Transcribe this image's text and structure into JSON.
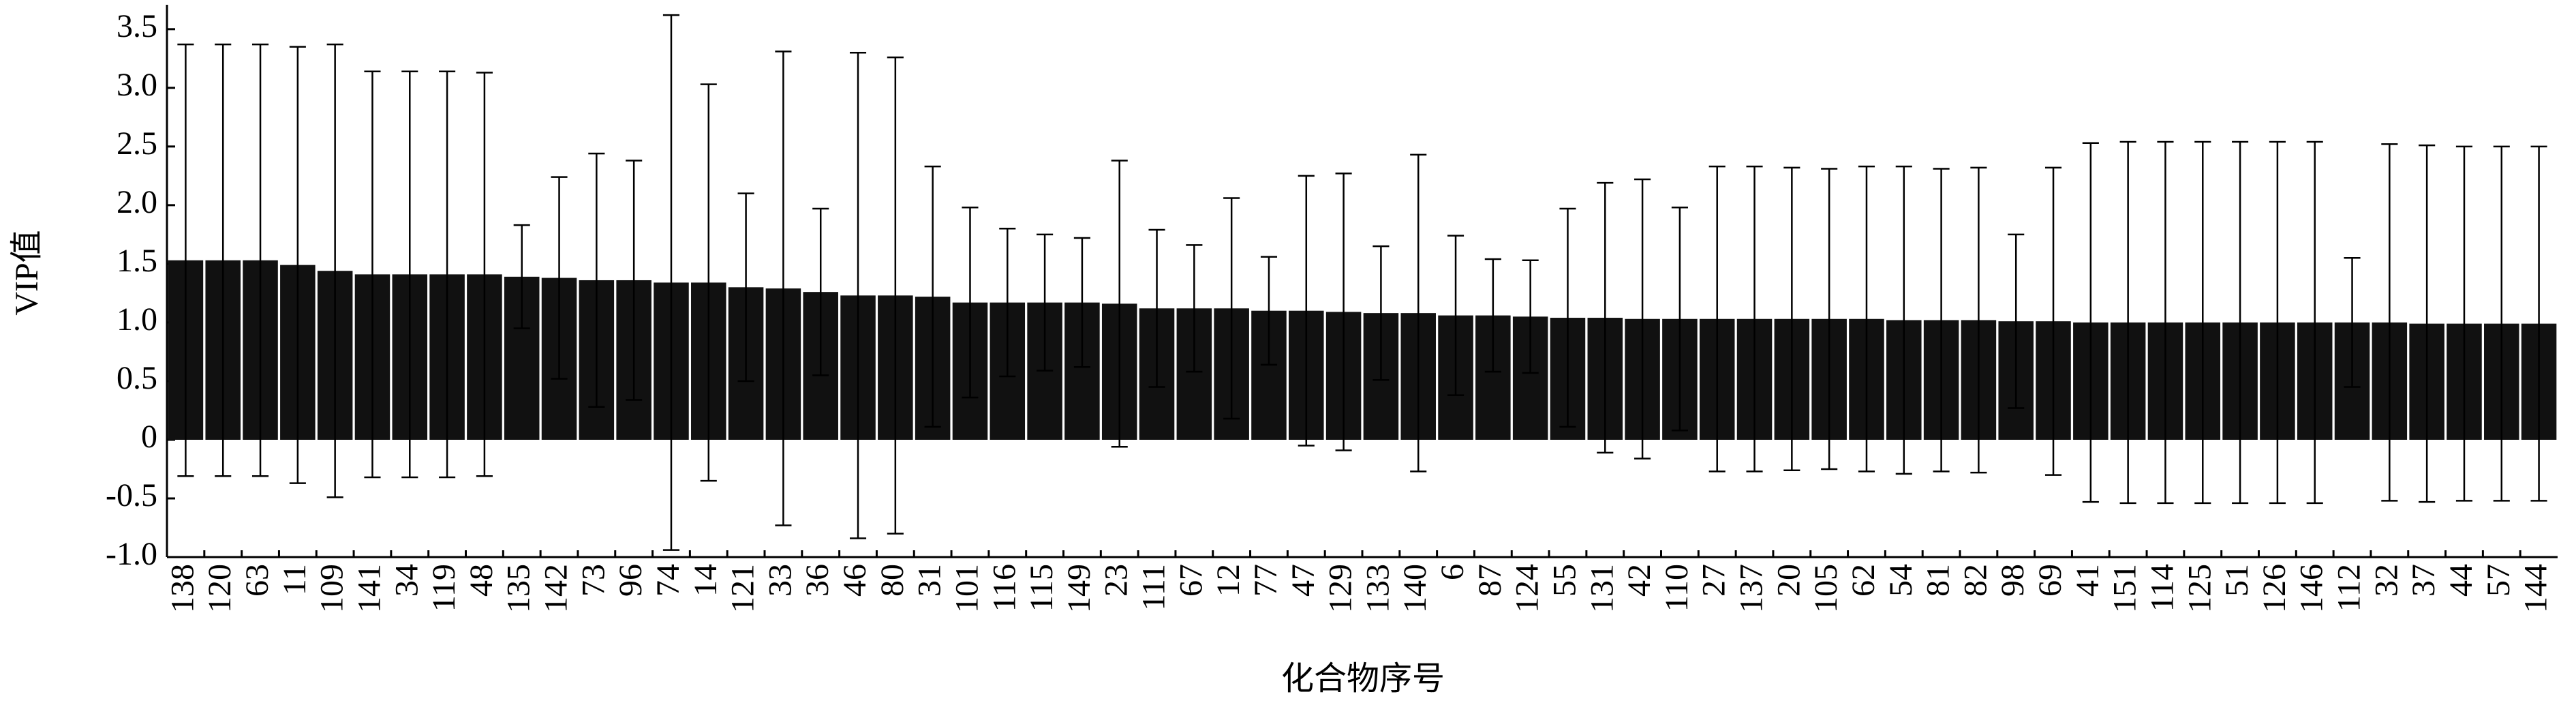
{
  "chart_data": {
    "type": "bar",
    "x_label": "化合物序号",
    "y_label": "VIP值",
    "categories": [
      "138",
      "120",
      "63",
      "11",
      "109",
      "141",
      "34",
      "119",
      "48",
      "135",
      "142",
      "73",
      "96",
      "74",
      "14",
      "121",
      "33",
      "36",
      "46",
      "80",
      "31",
      "101",
      "116",
      "115",
      "149",
      "23",
      "111",
      "67",
      "12",
      "77",
      "47",
      "129",
      "133",
      "140",
      "6",
      "87",
      "124",
      "55",
      "131",
      "42",
      "110",
      "27",
      "137",
      "20",
      "105",
      "62",
      "54",
      "81",
      "82",
      "98",
      "69",
      "41",
      "151",
      "114",
      "125",
      "51",
      "126",
      "146",
      "112",
      "32",
      "37",
      "44",
      "57",
      "144"
    ],
    "values": [
      1.53,
      1.53,
      1.53,
      1.49,
      1.44,
      1.41,
      1.41,
      1.41,
      1.41,
      1.39,
      1.38,
      1.36,
      1.36,
      1.34,
      1.34,
      1.3,
      1.29,
      1.26,
      1.23,
      1.23,
      1.22,
      1.17,
      1.17,
      1.17,
      1.17,
      1.16,
      1.12,
      1.12,
      1.12,
      1.1,
      1.1,
      1.09,
      1.08,
      1.08,
      1.06,
      1.06,
      1.05,
      1.04,
      1.04,
      1.03,
      1.03,
      1.03,
      1.03,
      1.03,
      1.03,
      1.03,
      1.02,
      1.02,
      1.02,
      1.01,
      1.01,
      1.0,
      1.0,
      1.0,
      1.0,
      1.0,
      1.0,
      1.0,
      1.0,
      1.0,
      0.99,
      0.99,
      0.99,
      0.99
    ],
    "errors": [
      1.84,
      1.84,
      1.84,
      1.86,
      1.93,
      1.73,
      1.73,
      1.73,
      1.72,
      0.44,
      0.86,
      1.08,
      1.02,
      2.28,
      1.69,
      0.8,
      2.02,
      0.71,
      2.07,
      2.03,
      1.11,
      0.81,
      0.63,
      0.58,
      0.55,
      1.22,
      0.67,
      0.54,
      0.94,
      0.46,
      1.15,
      1.18,
      0.57,
      1.35,
      0.68,
      0.48,
      0.48,
      0.93,
      1.15,
      1.19,
      0.95,
      1.3,
      1.3,
      1.29,
      1.28,
      1.3,
      1.31,
      1.29,
      1.3,
      0.74,
      1.31,
      1.53,
      1.54,
      1.54,
      1.54,
      1.54,
      1.54,
      1.54,
      0.55,
      1.52,
      1.52,
      1.51,
      1.51,
      1.51
    ],
    "color": "#111111",
    "ylim": [
      -1.0,
      3.65
    ],
    "yticks": [
      {
        "value": -1.0,
        "label": "-1.0"
      },
      -0.5,
      0,
      0.5,
      {
        "value": 1.0,
        "label": "1.0"
      },
      1.5,
      {
        "value": 2.0,
        "label": "2.0"
      },
      2.5,
      {
        "value": 3.0,
        "label": "3.0"
      },
      3.5
    ]
  }
}
